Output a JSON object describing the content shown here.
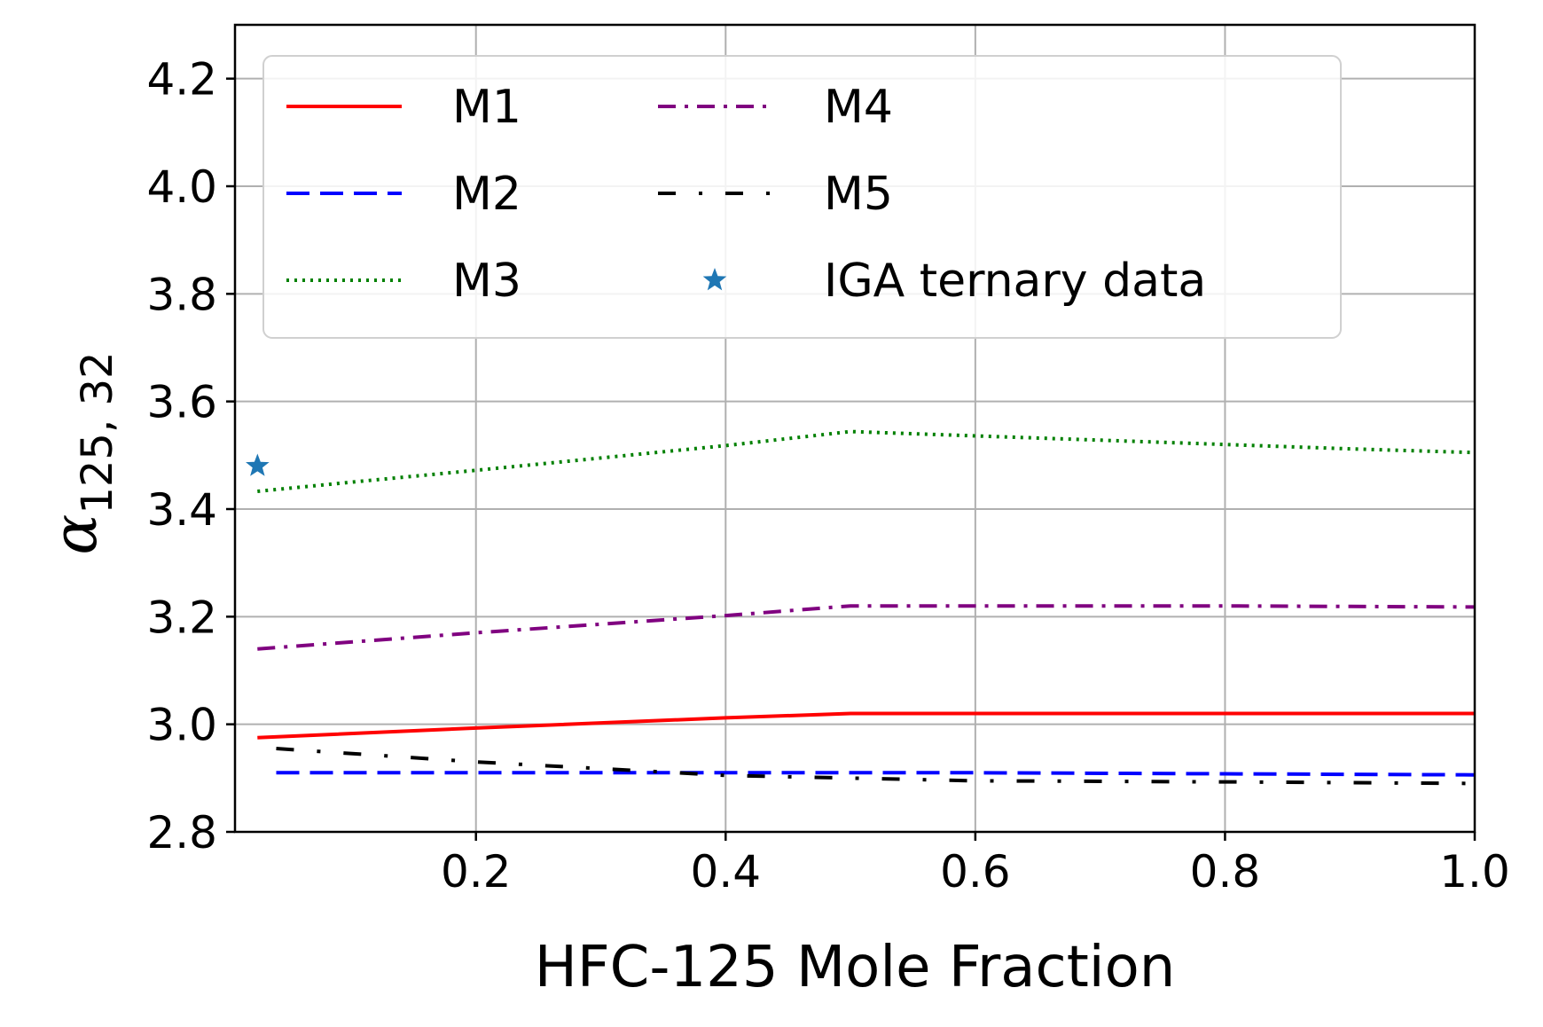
{
  "chart_data": {
    "type": "line",
    "title": "",
    "xlabel": "HFC-125 Mole Fraction",
    "ylabel_main": "α",
    "ylabel_sub": "125, 32",
    "xlim": [
      0.007,
      1.0
    ],
    "ylim": [
      2.8,
      4.3
    ],
    "xticks": [
      0.2,
      0.4,
      0.6,
      0.8,
      1.0
    ],
    "xtick_labels": [
      "0.2",
      "0.4",
      "0.6",
      "0.8",
      "1.0"
    ],
    "yticks": [
      2.8,
      3.0,
      3.2,
      3.4,
      3.6,
      3.8,
      4.0,
      4.2
    ],
    "ytick_labels": [
      "2.8",
      "3.0",
      "3.2",
      "3.4",
      "3.6",
      "3.8",
      "4.0",
      "4.2"
    ],
    "grid": true,
    "legend": {
      "placement": "upper-left",
      "columns": 2
    },
    "series": [
      {
        "name": "M1",
        "style": "solid",
        "color": "#ff0000",
        "x": [
          0.025,
          0.2,
          0.4,
          0.5,
          0.6,
          0.8,
          1.0
        ],
        "y": [
          2.975,
          2.993,
          3.012,
          3.02,
          3.02,
          3.02,
          3.02
        ]
      },
      {
        "name": "M2",
        "style": "dashed",
        "color": "#0000ff",
        "x": [
          0.04,
          0.2,
          0.4,
          0.6,
          0.8,
          1.0
        ],
        "y": [
          2.91,
          2.91,
          2.91,
          2.91,
          2.908,
          2.906
        ]
      },
      {
        "name": "M3",
        "style": "dotted",
        "color": "#008000",
        "x": [
          0.025,
          0.1,
          0.2,
          0.3,
          0.4,
          0.5,
          0.6,
          0.7,
          0.8,
          0.9,
          1.0
        ],
        "y": [
          3.433,
          3.45,
          3.472,
          3.495,
          3.518,
          3.544,
          3.536,
          3.528,
          3.52,
          3.512,
          3.505
        ]
      },
      {
        "name": "M4",
        "style": "dashdot",
        "color": "#800080",
        "x": [
          0.025,
          0.2,
          0.4,
          0.5,
          0.6,
          0.8,
          1.0
        ],
        "y": [
          3.14,
          3.17,
          3.202,
          3.22,
          3.22,
          3.22,
          3.218
        ]
      },
      {
        "name": "M5",
        "style": "loosedashdot",
        "color": "#000000",
        "x": [
          0.04,
          0.2,
          0.4,
          0.6,
          0.8,
          1.0
        ],
        "y": [
          2.955,
          2.93,
          2.905,
          2.895,
          2.893,
          2.89
        ]
      },
      {
        "name": "IGA ternary data",
        "style": "marker-star",
        "color": "#1f77b4",
        "x": [
          0.025
        ],
        "y": [
          3.48
        ]
      }
    ]
  }
}
